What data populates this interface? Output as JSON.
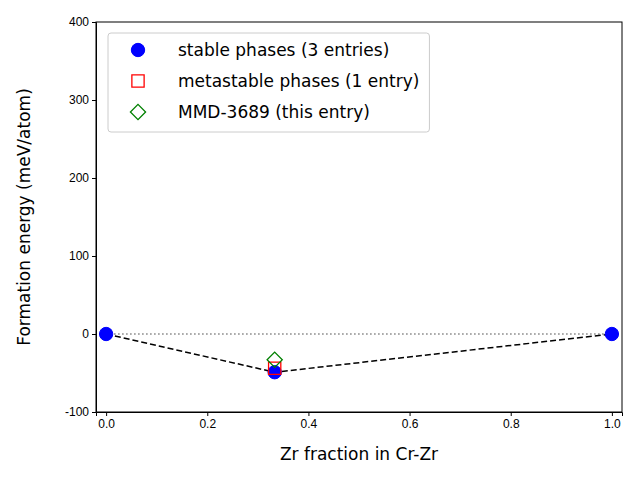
{
  "chart_data": {
    "type": "scatter",
    "x_label": "Zr fraction in Cr-Zr",
    "y_label": "Formation energy (meV/atom)",
    "xlim": [
      -0.02,
      1.02
    ],
    "xticks": [
      {
        "value": 0,
        "label": "0.0"
      },
      {
        "value": 0.2,
        "label": "0.2"
      },
      {
        "value": 0.4,
        "label": "0.4"
      },
      {
        "value": 0.6,
        "label": "0.6"
      },
      {
        "value": 0.8,
        "label": "0.8"
      },
      {
        "value": 1,
        "label": "1.0"
      }
    ],
    "ylim": [
      -100,
      400
    ],
    "yticks": [
      -100,
      0,
      100,
      200,
      300,
      400
    ],
    "legend": "upper left",
    "series": [
      {
        "type": "line",
        "color": "#808080",
        "line_style": "dotted",
        "x": [
          0,
          1
        ],
        "values": [
          0,
          0
        ]
      },
      {
        "type": "line",
        "color": "#000000",
        "line_style": "dashed",
        "x": [
          0,
          0.3333,
          1
        ],
        "values": [
          0,
          -49,
          0
        ]
      },
      {
        "name": "stable phases (3 entries)",
        "type": "scatter",
        "color": "#0000ff",
        "marker": "circle",
        "x": [
          0,
          0.3333,
          1
        ],
        "values": [
          0,
          -49,
          0
        ]
      },
      {
        "name": "metastable phases (1 entry)",
        "type": "scatter",
        "color": "#ff0000",
        "marker": "square-open",
        "x": [
          0.3333
        ],
        "values": [
          -44
        ]
      },
      {
        "name": "MMD-3689 (this entry)",
        "type": "scatter",
        "color": "#008000",
        "marker": "diamond-open",
        "x": [
          0.3333
        ],
        "values": [
          -33
        ]
      }
    ]
  }
}
